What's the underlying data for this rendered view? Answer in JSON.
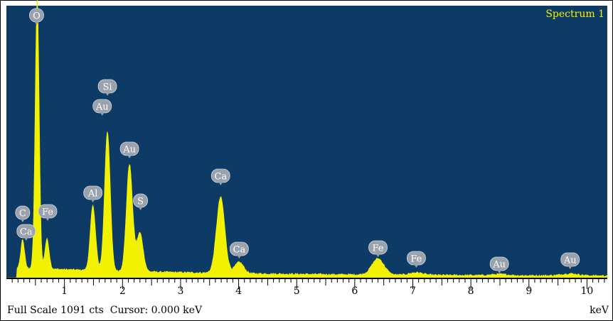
{
  "chart_data": {
    "type": "line",
    "title": "Spectrum 1",
    "xlabel": "keV",
    "xlim": [
      0,
      10.35
    ],
    "ylim": [
      0,
      1091
    ],
    "x_ticks": [
      "1",
      "2",
      "3",
      "4",
      "5",
      "6",
      "7",
      "8",
      "9",
      "10"
    ],
    "background_color": "#0e3a66",
    "fill_color": "#f2f200",
    "title_color": "#f2f200",
    "marker_color": "#9aa3ad",
    "peaks": [
      {
        "energy": 0.28,
        "counts": 115
      },
      {
        "energy": 0.53,
        "counts": 1091
      },
      {
        "energy": 0.7,
        "counts": 120
      },
      {
        "energy": 1.49,
        "counts": 260
      },
      {
        "energy": 1.74,
        "counts": 560
      },
      {
        "energy": 2.12,
        "counts": 430
      },
      {
        "energy": 2.3,
        "counts": 155
      },
      {
        "energy": 3.69,
        "counts": 305
      },
      {
        "energy": 4.01,
        "counts": 45
      },
      {
        "energy": 6.4,
        "counts": 65
      },
      {
        "energy": 7.06,
        "counts": 10
      },
      {
        "energy": 8.49,
        "counts": 5
      },
      {
        "energy": 9.71,
        "counts": 8
      }
    ],
    "element_markers": [
      {
        "label": "O",
        "energy": 0.52
      },
      {
        "label": "Si",
        "energy": 1.74
      },
      {
        "label": "Au",
        "energy": 1.65
      },
      {
        "label": "Au",
        "energy": 2.12
      },
      {
        "label": "Al",
        "energy": 1.49
      },
      {
        "label": "S",
        "energy": 2.31
      },
      {
        "label": "Ca",
        "energy": 3.69
      },
      {
        "label": "C",
        "energy": 0.28
      },
      {
        "label": "Fe",
        "energy": 0.71
      },
      {
        "label": "Ca",
        "energy": 0.34
      },
      {
        "label": "Ca",
        "energy": 4.01
      },
      {
        "label": "Fe",
        "energy": 6.4
      },
      {
        "label": "Fe",
        "energy": 7.06
      },
      {
        "label": "Au",
        "energy": 8.49
      },
      {
        "label": "Au",
        "energy": 9.71
      }
    ]
  },
  "status": {
    "full_scale": "Full Scale 1091 cts  Cursor: 0.000 keV",
    "unit": "keV"
  }
}
